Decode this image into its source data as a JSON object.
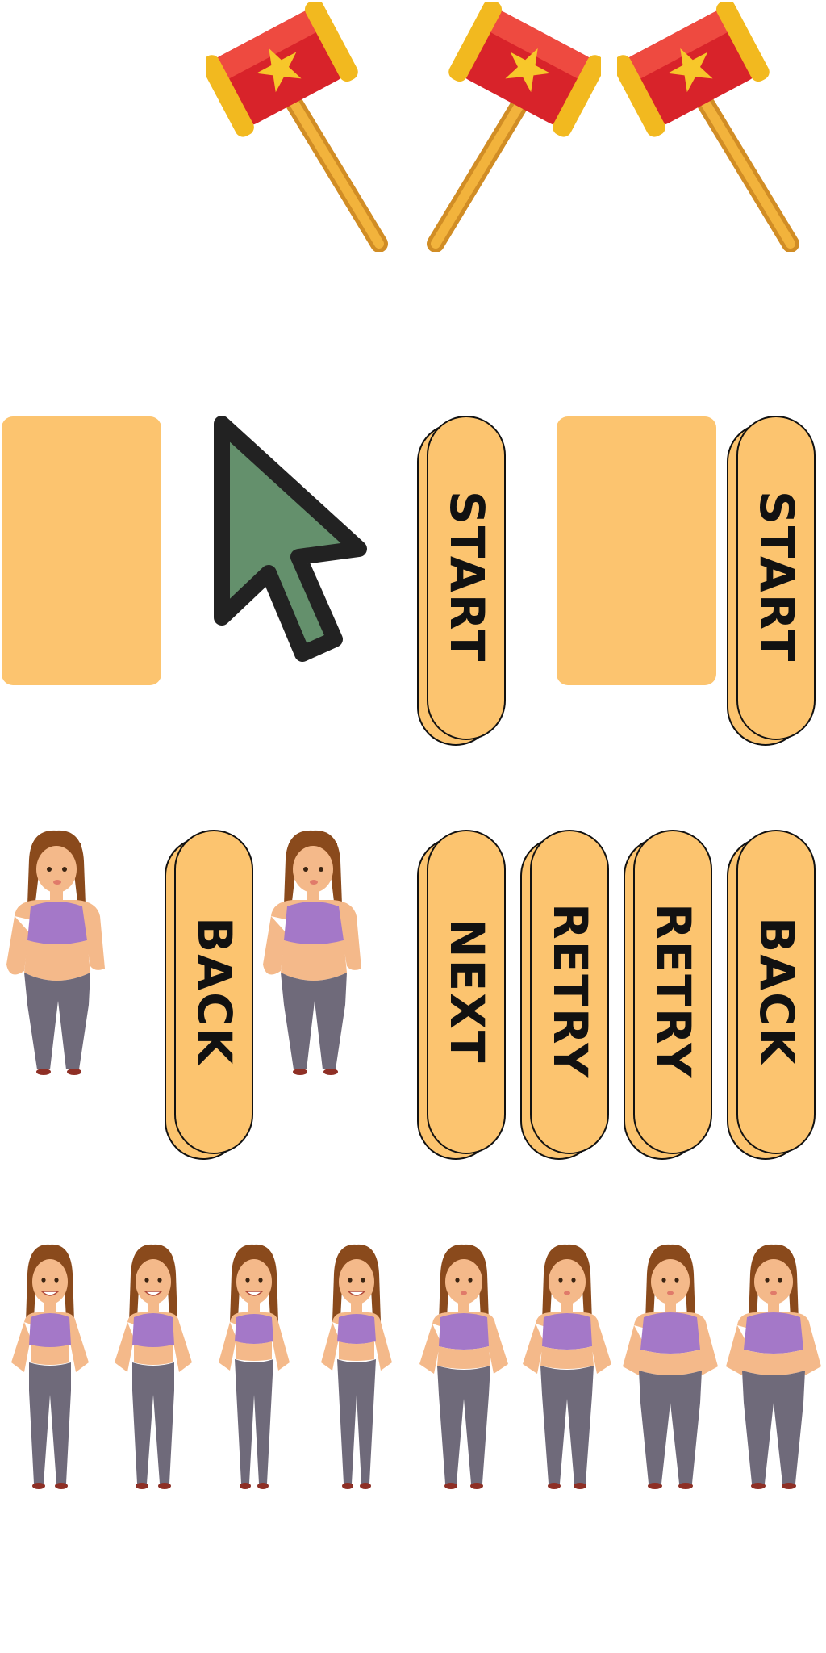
{
  "colors": {
    "button_fill": "#fcc46f",
    "button_stroke": "#111111",
    "panel_fill": "#fcc46f",
    "cursor_fill": "#64906c",
    "cursor_stroke": "#222222",
    "hammer_head": "#d8232a",
    "hammer_gold": "#f2b91f",
    "hammer_handle": "#e3a030",
    "hair": "#8a4a1c",
    "skin": "#f4b98a",
    "top": "#a478c8",
    "pants": "#6f6a7a"
  },
  "buttons": {
    "start_1": "START",
    "start_2": "START",
    "back_1": "BACK",
    "next": "NEXT",
    "retry_1": "RETRY",
    "retry_2": "RETRY",
    "back_2": "BACK"
  },
  "sprites": {
    "hammers": [
      "hammer-icon",
      "hammer-icon",
      "hammer-icon"
    ],
    "cursor": "cursor-arrow-icon",
    "women_large": [
      "woman-heavy",
      "woman-heavy"
    ],
    "women_row": [
      "woman-slim-smiling",
      "woman-slim-smiling",
      "woman-slim-smiling",
      "woman-slim-smiling",
      "woman-medium",
      "woman-medium",
      "woman-heavy",
      "woman-heavy"
    ]
  }
}
